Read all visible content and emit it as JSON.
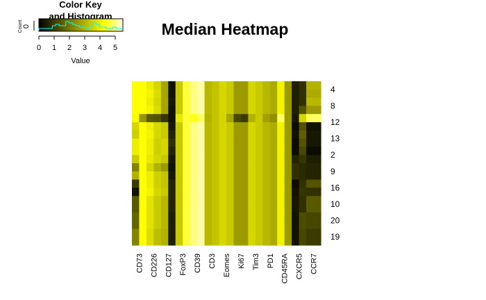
{
  "chart_data": {
    "type": "heatmap",
    "title": "Median Heatmap",
    "columns": [
      "CD73",
      "CD226",
      "CD127",
      "FoxP3",
      "CD39",
      "CD3",
      "Eomes",
      "Ki67",
      "Tim3",
      "PD1",
      "CD45RA",
      "CXCR5",
      "CCR7"
    ],
    "rows": [
      "4",
      "8",
      "12",
      "13",
      "2",
      "9",
      "16",
      "10",
      "20",
      "19"
    ],
    "cell_rows": 20,
    "cell_cols": 26,
    "values": [
      [
        4.3,
        4.3,
        4.0,
        3.6,
        2.8,
        0.3,
        3.4,
        4.6,
        5.0,
        5.2,
        3.1,
        3.3,
        3.6,
        3.4,
        2.6,
        2.6,
        3.6,
        3.4,
        3.1,
        2.9,
        4.1,
        2.6,
        0.5,
        0.8,
        3.0,
        3.0
      ],
      [
        4.3,
        4.3,
        4.1,
        3.7,
        2.8,
        0.3,
        3.4,
        4.6,
        5.0,
        5.2,
        3.1,
        3.3,
        3.6,
        3.4,
        2.6,
        2.6,
        3.6,
        3.4,
        3.1,
        2.9,
        4.1,
        2.6,
        0.5,
        0.8,
        2.9,
        2.9
      ],
      [
        4.3,
        4.3,
        4.0,
        3.6,
        2.8,
        0.4,
        3.4,
        4.6,
        5.0,
        5.2,
        3.1,
        3.3,
        3.6,
        3.4,
        2.6,
        2.6,
        3.6,
        3.4,
        3.1,
        2.9,
        4.1,
        2.6,
        0.5,
        0.8,
        3.1,
        3.1
      ],
      [
        4.3,
        4.3,
        4.1,
        3.7,
        2.8,
        0.3,
        3.4,
        4.6,
        5.0,
        5.2,
        3.1,
        3.3,
        3.6,
        3.4,
        2.6,
        2.6,
        3.6,
        3.4,
        3.1,
        2.9,
        4.1,
        2.6,
        0.5,
        1.4,
        2.6,
        2.6
      ],
      [
        4.2,
        2.5,
        1.5,
        1.4,
        0.9,
        0.3,
        3.9,
        4.6,
        4.4,
        4.8,
        3.0,
        3.3,
        3.6,
        2.8,
        1.2,
        1.0,
        3.0,
        3.4,
        2.7,
        2.4,
        4.8,
        2.6,
        0.4,
        3.6,
        4.8,
        4.8
      ],
      [
        3.6,
        4.3,
        4.0,
        3.6,
        3.4,
        0.4,
        3.4,
        4.6,
        5.0,
        5.2,
        3.1,
        3.3,
        3.6,
        3.4,
        2.6,
        2.6,
        3.6,
        3.4,
        3.1,
        2.9,
        4.1,
        2.6,
        0.2,
        1.4,
        0.3,
        0.3
      ],
      [
        3.5,
        4.3,
        4.1,
        3.6,
        3.4,
        0.6,
        3.4,
        4.6,
        5.0,
        5.2,
        3.1,
        3.3,
        3.6,
        3.4,
        2.6,
        2.6,
        3.6,
        3.4,
        3.1,
        2.9,
        4.1,
        2.6,
        0.3,
        1.6,
        0.4,
        0.4
      ],
      [
        4.0,
        4.3,
        4.0,
        3.5,
        3.6,
        0.8,
        3.4,
        4.6,
        5.0,
        5.2,
        3.1,
        3.3,
        3.6,
        3.4,
        2.6,
        2.6,
        3.6,
        3.4,
        3.1,
        2.9,
        4.1,
        2.6,
        0.2,
        1.4,
        0.4,
        0.4
      ],
      [
        4.0,
        4.3,
        4.0,
        3.5,
        3.6,
        0.6,
        3.4,
        4.6,
        5.0,
        5.2,
        3.1,
        3.3,
        3.6,
        3.4,
        2.6,
        2.6,
        3.6,
        3.4,
        3.1,
        2.9,
        4.1,
        2.6,
        0.2,
        1.2,
        0.2,
        0.2
      ],
      [
        3.4,
        4.3,
        3.9,
        3.6,
        3.4,
        0.4,
        3.4,
        4.6,
        5.0,
        5.2,
        3.1,
        3.3,
        3.6,
        3.4,
        2.6,
        2.6,
        3.6,
        3.4,
        3.1,
        2.9,
        4.1,
        2.6,
        0.6,
        0.9,
        0.5,
        0.5
      ],
      [
        2.2,
        4.3,
        3.6,
        3.0,
        2.6,
        0.3,
        3.4,
        4.6,
        5.0,
        5.2,
        3.1,
        3.3,
        3.6,
        3.4,
        2.6,
        2.6,
        3.6,
        3.4,
        3.1,
        2.9,
        4.1,
        2.6,
        0.8,
        0.7,
        0.6,
        0.6
      ],
      [
        3.0,
        4.3,
        4.0,
        3.5,
        3.3,
        0.4,
        3.4,
        4.6,
        5.0,
        5.2,
        3.1,
        3.3,
        3.6,
        3.4,
        2.6,
        2.6,
        3.6,
        3.4,
        3.1,
        2.9,
        4.1,
        2.6,
        0.8,
        0.7,
        0.6,
        0.6
      ],
      [
        1.0,
        4.3,
        4.0,
        3.5,
        3.3,
        0.6,
        3.4,
        4.6,
        5.0,
        5.2,
        3.1,
        3.3,
        3.6,
        3.4,
        2.6,
        2.6,
        3.6,
        3.4,
        3.1,
        2.9,
        4.1,
        2.6,
        0.2,
        0.8,
        1.4,
        1.4
      ],
      [
        0.3,
        4.3,
        4.1,
        3.6,
        3.4,
        0.6,
        3.4,
        4.6,
        5.0,
        5.2,
        3.1,
        3.3,
        3.6,
        3.4,
        2.6,
        2.6,
        3.6,
        3.4,
        3.1,
        2.9,
        4.1,
        2.6,
        0.3,
        0.9,
        0.8,
        0.8
      ],
      [
        1.5,
        4.3,
        3.8,
        3.4,
        3.1,
        0.6,
        3.4,
        4.6,
        5.0,
        5.2,
        3.1,
        3.3,
        3.6,
        3.4,
        2.6,
        2.6,
        3.6,
        3.4,
        3.1,
        2.9,
        4.1,
        2.6,
        0.4,
        0.8,
        1.5,
        1.5
      ],
      [
        1.5,
        4.3,
        3.8,
        3.4,
        3.1,
        0.6,
        3.4,
        4.6,
        5.0,
        5.2,
        3.1,
        3.3,
        3.6,
        3.4,
        2.6,
        2.6,
        3.6,
        3.4,
        3.1,
        2.9,
        4.1,
        2.6,
        0.4,
        0.8,
        1.5,
        1.5
      ],
      [
        1.7,
        4.3,
        3.8,
        3.4,
        3.1,
        0.5,
        3.4,
        4.6,
        5.0,
        5.2,
        3.1,
        3.3,
        3.6,
        3.4,
        2.6,
        2.6,
        3.6,
        3.4,
        3.1,
        2.9,
        4.1,
        2.6,
        0.3,
        1.3,
        1.2,
        1.2
      ],
      [
        1.7,
        4.3,
        3.8,
        3.4,
        3.1,
        0.5,
        3.4,
        4.6,
        5.0,
        5.2,
        3.1,
        3.3,
        3.6,
        3.4,
        2.6,
        2.6,
        3.6,
        3.4,
        3.1,
        2.9,
        4.1,
        2.6,
        0.3,
        1.3,
        1.2,
        1.2
      ],
      [
        2.2,
        4.3,
        3.7,
        3.2,
        3.0,
        0.5,
        3.4,
        4.6,
        5.0,
        5.2,
        3.1,
        3.3,
        3.6,
        3.4,
        2.6,
        2.6,
        3.6,
        3.4,
        3.1,
        2.9,
        4.1,
        2.6,
        0.3,
        1.2,
        1.0,
        1.0
      ],
      [
        2.2,
        4.3,
        3.7,
        3.2,
        3.0,
        0.5,
        3.4,
        4.6,
        5.0,
        5.2,
        3.1,
        3.3,
        3.6,
        3.4,
        2.6,
        2.6,
        3.6,
        3.4,
        3.1,
        2.9,
        4.1,
        2.6,
        0.3,
        1.2,
        1.0,
        1.0
      ]
    ],
    "color_scale": {
      "low": "#000000",
      "mid": "#ffff00",
      "high": "#fffde0",
      "vmin": 0,
      "vmax": 5.5
    },
    "color_key": {
      "title_line1": "Color Key",
      "title_line2": "and Histogram",
      "xlabel": "Value",
      "ylabel": "Count",
      "y_tick": "0",
      "x_ticks": [
        0,
        1,
        2,
        3,
        4,
        5
      ],
      "range": [
        0,
        5.5
      ],
      "hist_color": "#00ffff",
      "histogram": [
        1,
        1,
        1,
        1,
        3,
        4,
        3,
        3,
        6,
        5,
        4,
        3,
        2,
        2,
        1,
        3,
        5,
        4,
        2,
        2,
        1,
        1,
        2,
        1,
        1
      ]
    }
  }
}
